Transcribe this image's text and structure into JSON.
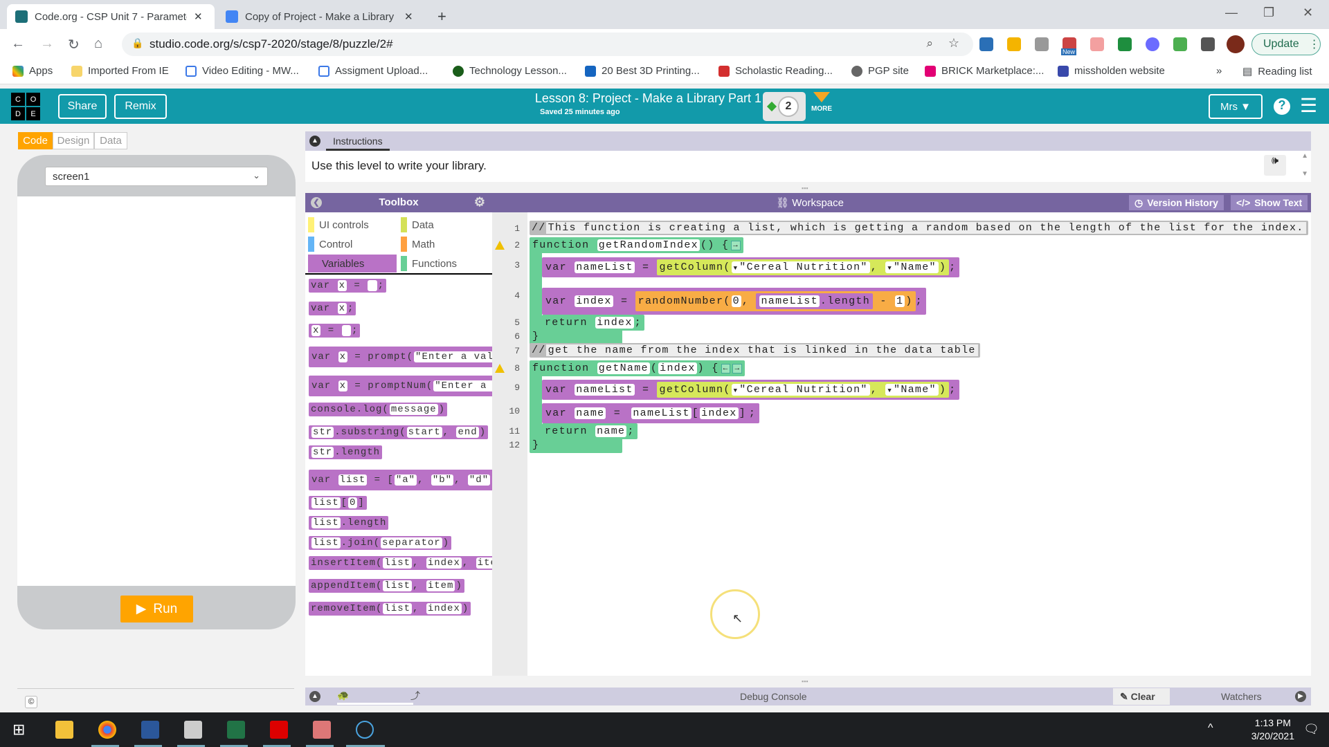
{
  "browser": {
    "tabs": [
      {
        "title": "Code.org - CSP Unit 7 - Parameters",
        "active": true,
        "close": "✕"
      },
      {
        "title": "Copy of Project - Make a Library",
        "active": false,
        "close": "✕"
      }
    ],
    "new_tab": "+",
    "url": "studio.code.org/s/csp7-2020/stage/8/puzzle/2#",
    "update_label": "Update",
    "ext_badge": "New",
    "bookmarks": [
      "Apps",
      "Imported From IE",
      "Video Editing - MW...",
      "Assigment Upload...",
      "Technology Lesson...",
      "20 Best 3D Printing...",
      "Scholastic Reading...",
      "PGP site",
      "BRICK Marketplace:...",
      "missholden website"
    ],
    "bookmarks_more": "»",
    "reading_list": "Reading list"
  },
  "header": {
    "logo": [
      "C",
      "O",
      "D",
      "E"
    ],
    "share": "Share",
    "remix": "Remix",
    "lesson_title": "Lesson 8: Project - Make a Library Part 1",
    "saved": "Saved 25 minutes ago",
    "level": "2",
    "more": "MORE",
    "user": "Mrs ▼",
    "help": "?",
    "menu": "☰"
  },
  "left": {
    "mode_tabs": [
      "Code",
      "Design",
      "Data"
    ],
    "active_mode": "Code",
    "screen_select": "screen1",
    "run": "Run",
    "copyright": "©"
  },
  "instructions": {
    "tab": "Instructions",
    "text": "Use this level to write your library."
  },
  "toolbox": {
    "title": "Toolbox",
    "categories": [
      {
        "label": "UI controls",
        "color": "#fff176"
      },
      {
        "label": "Data",
        "color": "#d4e157"
      },
      {
        "label": "Control",
        "color": "#64b5f6"
      },
      {
        "label": "Math",
        "color": "#ffa040"
      },
      {
        "label": "Variables",
        "color": "#b972c6"
      },
      {
        "label": "Functions",
        "color": "#68cf96"
      }
    ],
    "active_category": "Variables",
    "blocks": [
      [
        [
          "t",
          "var "
        ],
        [
          "s",
          "x"
        ],
        [
          "t",
          " = "
        ],
        [
          "s",
          " "
        ],
        [
          "t",
          ";"
        ]
      ],
      [
        [
          "t",
          "var "
        ],
        [
          "s",
          "x"
        ],
        [
          "t",
          ";"
        ]
      ],
      [
        [
          "s",
          "x"
        ],
        [
          "t",
          " = "
        ],
        [
          "s",
          " "
        ],
        [
          "t",
          ";"
        ]
      ],
      [
        [
          "t",
          "var "
        ],
        [
          "s",
          "x"
        ],
        [
          "t",
          " = "
        ],
        [
          "t",
          "prompt("
        ],
        [
          "s",
          "\"Enter a valu"
        ]
      ],
      [
        [
          "t",
          "var "
        ],
        [
          "s",
          "x"
        ],
        [
          "t",
          " = "
        ],
        [
          "t",
          "promptNum("
        ],
        [
          "s",
          "\"Enter a v"
        ]
      ],
      [
        [
          "t",
          "console.log("
        ],
        [
          "s",
          "message"
        ],
        [
          "t",
          ")"
        ]
      ],
      [
        [
          "s",
          "str"
        ],
        [
          "t",
          ".substring("
        ],
        [
          "s",
          "start"
        ],
        [
          "t",
          ", "
        ],
        [
          "s",
          "end"
        ],
        [
          "t",
          ")"
        ]
      ],
      [
        [
          "s",
          "str"
        ],
        [
          "t",
          ".length"
        ]
      ],
      [
        [
          "t",
          "var "
        ],
        [
          "s",
          "list"
        ],
        [
          "t",
          " = "
        ],
        [
          "t",
          "["
        ],
        [
          "s",
          "\"a\""
        ],
        [
          "t",
          ", "
        ],
        [
          "s",
          "\"b\""
        ],
        [
          "t",
          ", "
        ],
        [
          "s",
          "\"d\""
        ],
        [
          "t",
          "] +"
        ]
      ],
      [
        [
          "s",
          "list"
        ],
        [
          "t",
          "["
        ],
        [
          "s",
          "0"
        ],
        [
          "t",
          "]"
        ]
      ],
      [
        [
          "s",
          "list"
        ],
        [
          "t",
          ".length"
        ]
      ],
      [
        [
          "s",
          "list"
        ],
        [
          "t",
          ".join("
        ],
        [
          "s",
          "separator"
        ],
        [
          "t",
          ")"
        ]
      ],
      [
        [
          "t",
          "insertItem("
        ],
        [
          "s",
          "list"
        ],
        [
          "t",
          ", "
        ],
        [
          "s",
          "index"
        ],
        [
          "t",
          ", "
        ],
        [
          "s",
          "item"
        ]
      ],
      [
        [
          "t",
          "appendItem("
        ],
        [
          "s",
          "list"
        ],
        [
          "t",
          ", "
        ],
        [
          "s",
          "item"
        ],
        [
          "t",
          ")"
        ]
      ],
      [
        [
          "t",
          "removeItem("
        ],
        [
          "s",
          "list"
        ],
        [
          "t",
          ", "
        ],
        [
          "s",
          "index"
        ],
        [
          "t",
          ")"
        ]
      ]
    ]
  },
  "workspace": {
    "title": "Workspace",
    "version_history": "Version History",
    "show_text": "Show Text",
    "line_numbers": [
      "1",
      "2",
      "3",
      "4",
      "5",
      "6",
      "7",
      "8",
      "9",
      "10",
      "11",
      "12"
    ],
    "warning_lines": [
      "2",
      "8"
    ],
    "lines": [
      {
        "kind": "comment",
        "tokens": [
          [
            "t",
            "//"
          ],
          [
            "c",
            "This function is creating a list, which is getting a random based on the length of the list for the index."
          ]
        ]
      },
      {
        "kind": "func",
        "tokens": [
          [
            "t",
            "function "
          ],
          [
            "s",
            "getRandomIndex"
          ],
          [
            "t",
            "() {"
          ],
          [
            "p",
            "→"
          ]
        ]
      },
      {
        "kind": "var",
        "tokens": [
          [
            "t",
            "var "
          ],
          [
            "s",
            "nameList"
          ],
          [
            "t",
            " = "
          ],
          [
            "n",
            "data",
            [
              [
                "t",
                "getColumn("
              ],
              [
                "d",
                "\"Cereal Nutrition\""
              ],
              [
                "t",
                ", "
              ],
              [
                "d",
                "\"Name\""
              ],
              [
                "t",
                ")"
              ]
            ]
          ],
          [
            "t",
            ";"
          ]
        ]
      },
      {
        "kind": "var",
        "tokens": [
          [
            "t",
            "var "
          ],
          [
            "s",
            "index"
          ],
          [
            "t",
            " = "
          ],
          [
            "n",
            "math",
            [
              [
                "t",
                "randomNumber("
              ],
              [
                "s",
                "0"
              ],
              [
                "t",
                ", "
              ],
              [
                "n",
                "var",
                [
                  [
                    "s",
                    "nameList"
                  ],
                  [
                    "t",
                    ".length"
                  ]
                ]
              ],
              [
                "t",
                " - "
              ],
              [
                "s",
                "1"
              ],
              [
                "t",
                ")"
              ]
            ]
          ],
          [
            "t",
            ";"
          ]
        ]
      },
      {
        "kind": "ret",
        "tokens": [
          [
            "t",
            "return "
          ],
          [
            "s",
            "index"
          ],
          [
            "t",
            ";"
          ]
        ]
      },
      {
        "kind": "end",
        "tokens": [
          [
            "t",
            "}"
          ]
        ]
      },
      {
        "kind": "comment",
        "tokens": [
          [
            "t",
            "//"
          ],
          [
            "c",
            "get the name from the index that is linked in the data table"
          ]
        ]
      },
      {
        "kind": "func",
        "tokens": [
          [
            "t",
            "function "
          ],
          [
            "s",
            "getName"
          ],
          [
            "t",
            "("
          ],
          [
            "s",
            "index"
          ],
          [
            "t",
            ") {"
          ],
          [
            "p",
            "←"
          ],
          [
            "p",
            "→"
          ]
        ]
      },
      {
        "kind": "var",
        "tokens": [
          [
            "t",
            "var "
          ],
          [
            "s",
            "nameList"
          ],
          [
            "t",
            " = "
          ],
          [
            "n",
            "data",
            [
              [
                "t",
                "getColumn("
              ],
              [
                "d",
                "\"Cereal Nutrition\""
              ],
              [
                "t",
                ", "
              ],
              [
                "d",
                "\"Name\""
              ],
              [
                "t",
                ")"
              ]
            ]
          ],
          [
            "t",
            ";"
          ]
        ]
      },
      {
        "kind": "var",
        "tokens": [
          [
            "t",
            "var "
          ],
          [
            "s",
            "name"
          ],
          [
            "t",
            " = "
          ],
          [
            "n",
            "var",
            [
              [
                "s",
                "nameList"
              ],
              [
                "t",
                "["
              ],
              [
                "s",
                "index"
              ],
              [
                "t",
                "]"
              ]
            ]
          ],
          [
            "t",
            ";"
          ]
        ]
      },
      {
        "kind": "ret",
        "tokens": [
          [
            "t",
            "return "
          ],
          [
            "s",
            "name"
          ],
          [
            "t",
            ";"
          ]
        ]
      },
      {
        "kind": "end",
        "tokens": [
          [
            "t",
            "}"
          ]
        ]
      }
    ]
  },
  "debug": {
    "title": "Debug Console",
    "clear": "Clear",
    "watchers": "Watchers"
  },
  "taskbar": {
    "time": "1:13 PM",
    "date": "3/20/2021"
  }
}
